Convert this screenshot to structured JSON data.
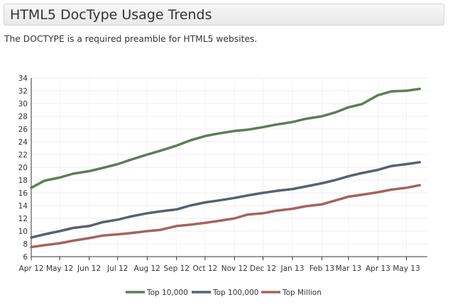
{
  "page": {
    "title": "HTML5 DocType Usage Trends",
    "description": "The DOCTYPE is a required preamble for HTML5 websites."
  },
  "chart_data": {
    "type": "line",
    "title": "",
    "xlabel": "",
    "ylabel": "",
    "ylim": [
      6,
      34
    ],
    "y_ticks": [
      6,
      8,
      10,
      12,
      14,
      16,
      18,
      20,
      22,
      24,
      26,
      28,
      30,
      32,
      34
    ],
    "x_ticks": [
      "Apr 12",
      "May 12",
      "Jun 12",
      "Jul 12",
      "Aug 12",
      "Sep 12",
      "Oct 12",
      "Nov 12",
      "Dec 12",
      "Jan 13",
      "Feb 13",
      "Mar 13",
      "Apr 13",
      "May 13"
    ],
    "grid": true,
    "legend_position": "bottom",
    "x": [
      "2012-04-01",
      "2012-04-15",
      "2012-05-01",
      "2012-05-15",
      "2012-06-01",
      "2012-06-15",
      "2012-07-01",
      "2012-07-15",
      "2012-08-01",
      "2012-08-15",
      "2012-09-01",
      "2012-09-15",
      "2012-10-01",
      "2012-10-15",
      "2012-11-01",
      "2012-11-15",
      "2012-12-01",
      "2012-12-15",
      "2013-01-01",
      "2013-01-15",
      "2013-02-01",
      "2013-02-15",
      "2013-03-01",
      "2013-03-15",
      "2013-04-01",
      "2013-04-15",
      "2013-05-01",
      "2013-05-15"
    ],
    "series": [
      {
        "name": "Top 10,000",
        "color": "#5b7f55",
        "values": [
          16.8,
          17.9,
          18.4,
          19.0,
          19.4,
          19.9,
          20.5,
          21.2,
          22.0,
          22.6,
          23.4,
          24.2,
          24.9,
          25.3,
          25.7,
          25.9,
          26.3,
          26.7,
          27.1,
          27.6,
          28.0,
          28.6,
          29.4,
          29.9,
          31.3,
          31.9,
          32.0,
          32.3
        ]
      },
      {
        "name": "Top 100,000",
        "color": "#556270",
        "values": [
          9.0,
          9.5,
          10.0,
          10.5,
          10.8,
          11.4,
          11.8,
          12.3,
          12.8,
          13.1,
          13.4,
          14.0,
          14.5,
          14.8,
          15.2,
          15.6,
          16.0,
          16.3,
          16.6,
          17.0,
          17.5,
          18.0,
          18.6,
          19.1,
          19.6,
          20.2,
          20.5,
          20.8
        ]
      },
      {
        "name": "Top Million",
        "color": "#a5635e",
        "values": [
          7.5,
          7.8,
          8.1,
          8.5,
          8.9,
          9.3,
          9.5,
          9.7,
          10.0,
          10.2,
          10.8,
          11.0,
          11.3,
          11.6,
          12.0,
          12.6,
          12.8,
          13.2,
          13.5,
          13.9,
          14.2,
          14.8,
          15.4,
          15.7,
          16.1,
          16.5,
          16.8,
          17.2
        ]
      }
    ]
  }
}
